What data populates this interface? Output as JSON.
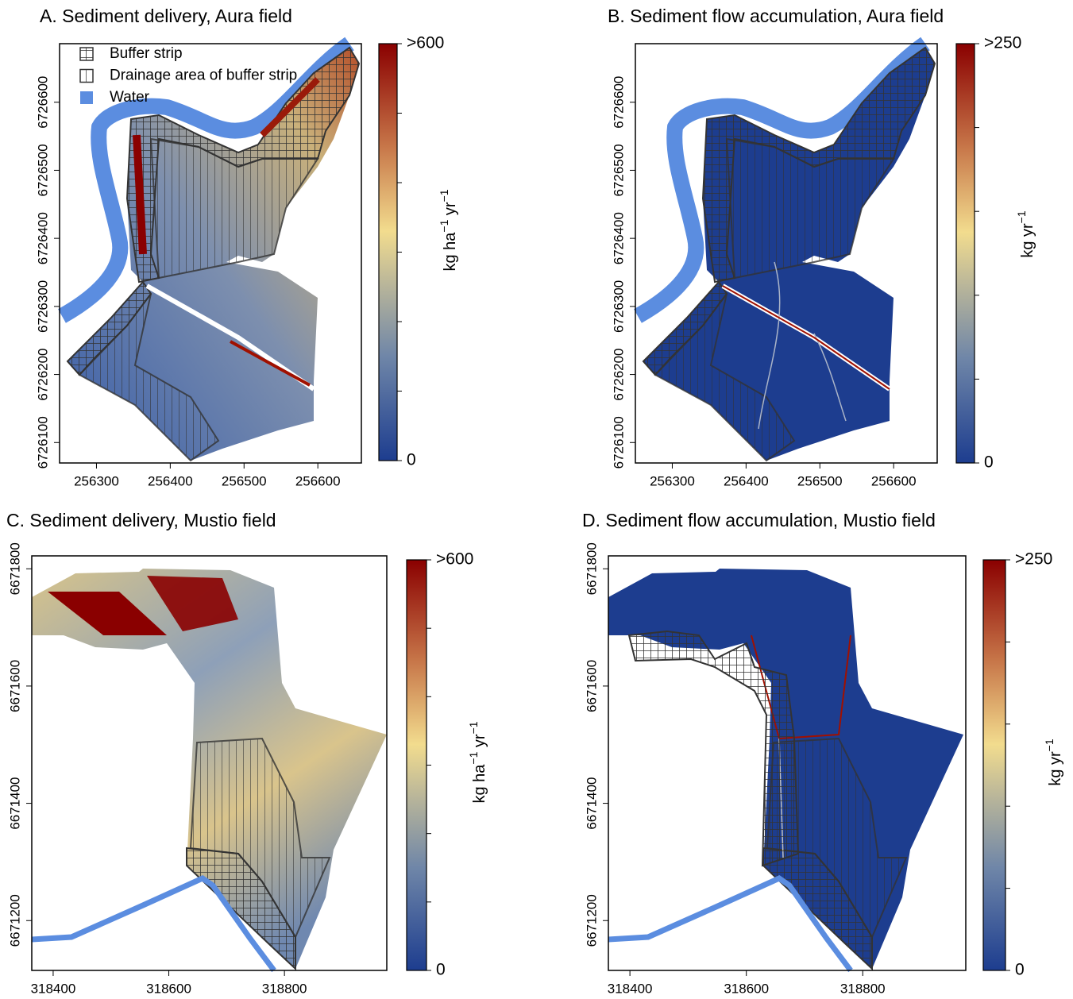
{
  "legend": [
    "Buffer strip",
    "Drainage area of buffer strip",
    "Water"
  ],
  "panels": [
    {
      "title": "A. Sediment delivery, Aura field",
      "xlim": [
        256250,
        256659
      ],
      "ylim": [
        6726070,
        6726686
      ],
      "xticks": [
        256300,
        256400,
        256500,
        256600
      ],
      "yticks": [
        6726100,
        6726200,
        6726300,
        6726400,
        6726500,
        6726600
      ],
      "colorbar": {
        "lim": [
          0,
          600
        ],
        "ticks": [
          0,
          {
            "value": 600,
            "label": ">600"
          }
        ],
        "minor_ticks": [
          100,
          200,
          300,
          400,
          500
        ],
        "unit": [
          [
            "kg ha",
            "−1"
          ],
          [
            " yr",
            "−1"
          ]
        ]
      }
    },
    {
      "title": "B. Sediment flow accumulation, Aura field",
      "xlim": [
        256250,
        256659
      ],
      "ylim": [
        6726070,
        6726686
      ],
      "xticks": [
        256300,
        256400,
        256500,
        256600
      ],
      "yticks": [
        6726100,
        6726200,
        6726300,
        6726400,
        6726500,
        6726600
      ],
      "colorbar": {
        "lim": [
          0,
          250
        ],
        "ticks": [
          0,
          {
            "value": 250,
            "label": ">250"
          }
        ],
        "minor_ticks": [
          50,
          100,
          150,
          200
        ],
        "unit": [
          [
            "kg yr",
            "−1"
          ]
        ]
      }
    },
    {
      "title": "C. Sediment delivery, Mustio field",
      "xlim": [
        318363,
        318977
      ],
      "ylim": [
        6671115,
        6671822
      ],
      "xticks": [
        318400,
        318600,
        318800
      ],
      "yticks": [
        6671200,
        6671400,
        6671600,
        6671800
      ],
      "colorbar": {
        "lim": [
          0,
          600
        ],
        "ticks": [
          0,
          {
            "value": 600,
            "label": ">600"
          }
        ],
        "minor_ticks": [
          100,
          200,
          300,
          400,
          500
        ],
        "unit": [
          [
            "kg ha",
            "−1"
          ],
          [
            " yr",
            "−1"
          ]
        ]
      }
    },
    {
      "title": "D. Sediment flow accumulation, Mustio field",
      "xlim": [
        318363,
        318977
      ],
      "ylim": [
        6671115,
        6671822
      ],
      "xticks": [
        318400,
        318600,
        318800
      ],
      "yticks": [
        6671200,
        6671400,
        6671600,
        6671800
      ],
      "colorbar": {
        "lim": [
          0,
          250
        ],
        "ticks": [
          0,
          {
            "value": 250,
            "label": ">250"
          }
        ],
        "minor_ticks": [
          50,
          100,
          150,
          200
        ],
        "unit": [
          [
            "kg yr",
            "−1"
          ]
        ]
      }
    }
  ]
}
